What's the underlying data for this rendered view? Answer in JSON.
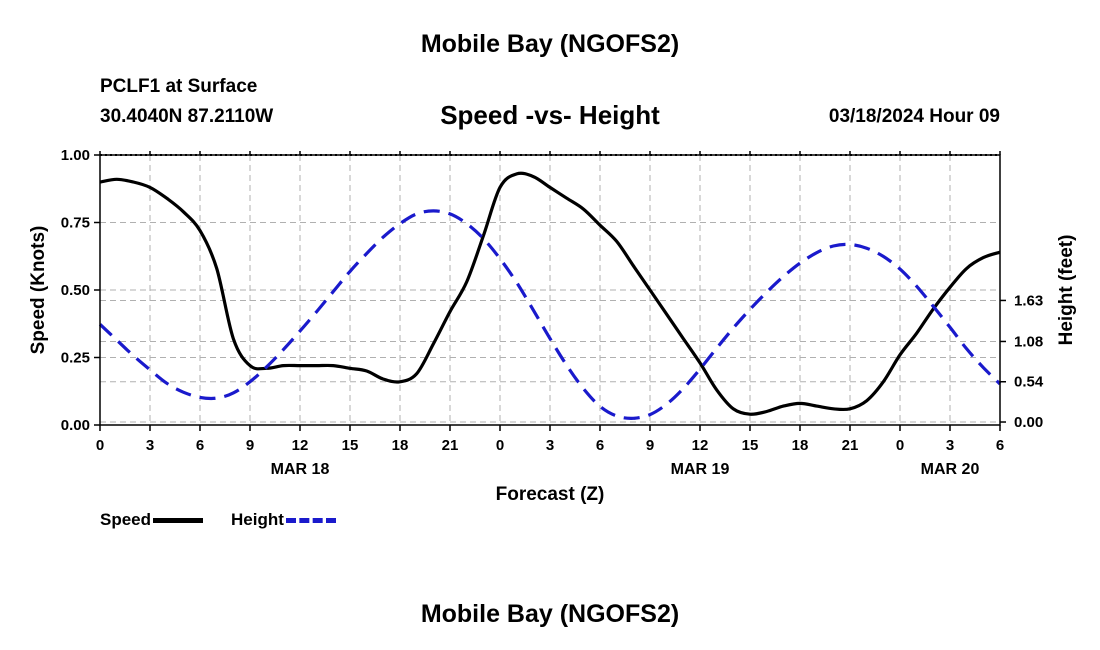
{
  "header": {
    "title": "Mobile Bay (NGOFS2)",
    "station": "PCLF1 at Surface",
    "coords": "30.4040N  87.2110W",
    "subtitle": "Speed -vs- Height",
    "datetime": "03/18/2024 Hour 09"
  },
  "footer": {
    "title": "Mobile Bay (NGOFS2)"
  },
  "legend": {
    "speed_label": "Speed",
    "height_label": "Height"
  },
  "colors": {
    "speed": "#000000",
    "height": "#1a1acc",
    "grid": "#b0b0b0"
  },
  "chart_data": {
    "type": "line",
    "xlabel": "Forecast (Z)",
    "ylabel": "Speed (Knots)",
    "y2label": "Height (feet)",
    "x_unit": "hours from 2024-03-18 00Z",
    "xlim": [
      0,
      54
    ],
    "ylim": [
      0,
      1.0
    ],
    "y2lim": [
      -0.04,
      3.58
    ],
    "x_ticks": [
      0,
      3,
      6,
      9,
      12,
      15,
      18,
      21,
      24,
      27,
      30,
      33,
      36,
      39,
      42,
      45,
      48,
      51,
      54
    ],
    "x_tick_labels": [
      "0",
      "3",
      "6",
      "9",
      "12",
      "15",
      "18",
      "21",
      "0",
      "3",
      "6",
      "9",
      "12",
      "15",
      "18",
      "21",
      "0",
      "3",
      "6"
    ],
    "date_labels": [
      {
        "x": 12,
        "label": "MAR 18"
      },
      {
        "x": 36,
        "label": "MAR 19"
      },
      {
        "x": 51,
        "label": "MAR 20"
      }
    ],
    "y_ticks": [
      0,
      0.25,
      0.5,
      0.75,
      1.0
    ],
    "y_tick_labels": [
      "0.00",
      "0.25",
      "0.50",
      "0.75",
      "1.00"
    ],
    "y2_ticks": [
      0.0,
      0.54,
      1.08,
      1.63
    ],
    "y2_tick_labels": [
      "0.00",
      "0.54",
      "1.08",
      "1.63"
    ],
    "grid": true,
    "legend_position": "bottom-left",
    "series": [
      {
        "name": "Speed",
        "axis": "left",
        "style": "solid",
        "x": [
          0,
          1,
          2,
          3,
          4,
          5,
          6,
          7,
          8,
          9,
          10,
          11,
          12,
          13,
          14,
          15,
          16,
          17,
          18,
          19,
          20,
          21,
          22,
          23,
          24,
          25,
          26,
          27,
          28,
          29,
          30,
          31,
          32,
          33,
          34,
          35,
          36,
          37,
          38,
          39,
          40,
          41,
          42,
          43,
          44,
          45,
          46,
          47,
          48,
          49,
          50,
          51,
          52,
          53,
          54
        ],
        "y": [
          0.9,
          0.91,
          0.9,
          0.88,
          0.84,
          0.79,
          0.72,
          0.58,
          0.32,
          0.22,
          0.21,
          0.22,
          0.22,
          0.22,
          0.22,
          0.21,
          0.2,
          0.17,
          0.16,
          0.19,
          0.3,
          0.42,
          0.53,
          0.7,
          0.88,
          0.93,
          0.92,
          0.88,
          0.84,
          0.8,
          0.74,
          0.68,
          0.59,
          0.5,
          0.41,
          0.32,
          0.23,
          0.13,
          0.06,
          0.04,
          0.05,
          0.07,
          0.08,
          0.07,
          0.06,
          0.06,
          0.09,
          0.16,
          0.26,
          0.34,
          0.43,
          0.51,
          0.58,
          0.62,
          0.64
        ]
      },
      {
        "name": "Height",
        "axis": "right",
        "style": "dashed",
        "x": [
          0,
          1,
          2,
          3,
          4,
          5,
          6,
          7,
          8,
          9,
          10,
          11,
          12,
          13,
          14,
          15,
          16,
          17,
          18,
          19,
          20,
          21,
          22,
          23,
          24,
          25,
          26,
          27,
          28,
          29,
          30,
          31,
          32,
          33,
          34,
          35,
          36,
          37,
          38,
          39,
          40,
          41,
          42,
          43,
          44,
          45,
          46,
          47,
          48,
          49,
          50,
          51,
          52,
          53,
          54
        ],
        "y": [
          1.31,
          1.1,
          0.89,
          0.7,
          0.52,
          0.4,
          0.33,
          0.32,
          0.39,
          0.54,
          0.74,
          0.97,
          1.22,
          1.48,
          1.75,
          2.02,
          2.26,
          2.48,
          2.66,
          2.79,
          2.83,
          2.79,
          2.66,
          2.46,
          2.19,
          1.87,
          1.5,
          1.12,
          0.76,
          0.45,
          0.21,
          0.08,
          0.05,
          0.1,
          0.24,
          0.45,
          0.71,
          0.99,
          1.26,
          1.51,
          1.74,
          1.95,
          2.13,
          2.27,
          2.36,
          2.38,
          2.33,
          2.22,
          2.05,
          1.82,
          1.55,
          1.27,
          0.98,
          0.73,
          0.51
        ]
      }
    ]
  }
}
